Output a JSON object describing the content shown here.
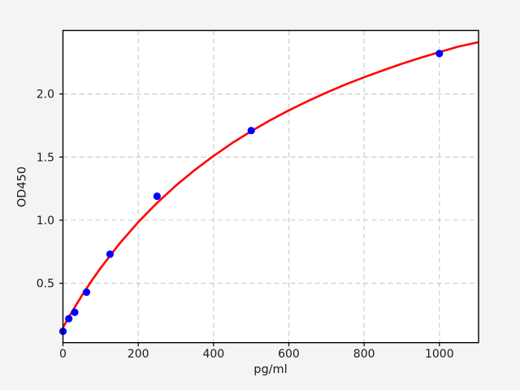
{
  "colors": {
    "figure_background": "#f4f4f4",
    "plot_background": "#ffffff",
    "grid": "#c8c8c8",
    "spine": "#000000",
    "tick_text": "#1a1a1a",
    "curve": "#ff0000",
    "marker": "#0000ff"
  },
  "chart_data": {
    "type": "scatter",
    "title": "",
    "xlabel": "pg/ml",
    "ylabel": "OD450",
    "xlim": [
      0,
      1104
    ],
    "ylim": [
      0.03,
      2.503
    ],
    "x_ticks": [
      0,
      200,
      400,
      600,
      800,
      1000
    ],
    "x_tick_labels": [
      "0",
      "200",
      "400",
      "600",
      "800",
      "1000"
    ],
    "y_ticks": [
      0.5,
      1.0,
      1.5,
      2.0
    ],
    "y_tick_labels": [
      "0.5",
      "1.0",
      "1.5",
      "2.0"
    ],
    "grid": true,
    "grid_style": "dashed",
    "legend_position": "none",
    "series": [
      {
        "name": "standard_points",
        "type": "scatter",
        "color": "#0000ff",
        "marker": "circle",
        "x": [
          0,
          15.6,
          31.2,
          62.5,
          125,
          250,
          500,
          1000
        ],
        "y": [
          0.12,
          0.22,
          0.27,
          0.43,
          0.73,
          1.19,
          1.71,
          2.32
        ]
      },
      {
        "name": "fitted_curve",
        "type": "line",
        "color": "#ff0000",
        "x": [
          0,
          12.5,
          25,
          50,
          75,
          100,
          150,
          200,
          250,
          300,
          350,
          400,
          450,
          500,
          550,
          600,
          650,
          700,
          750,
          800,
          850,
          900,
          950,
          1000,
          1050,
          1104
        ],
        "y": [
          0.15,
          0.216,
          0.28,
          0.402,
          0.515,
          0.621,
          0.814,
          0.985,
          1.137,
          1.274,
          1.397,
          1.509,
          1.612,
          1.705,
          1.791,
          1.87,
          1.943,
          2.011,
          2.074,
          2.132,
          2.187,
          2.239,
          2.287,
          2.332,
          2.375,
          2.41
        ]
      }
    ]
  }
}
